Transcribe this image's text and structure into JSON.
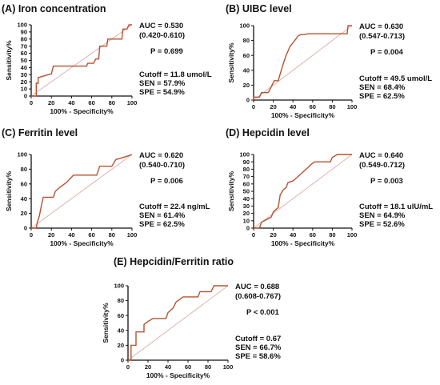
{
  "figure": {
    "background": "#ffffff",
    "curve_color": "#b8522e",
    "ref_line_color": "#e0b0b0"
  },
  "chart_data": [
    {
      "type": "line",
      "title": "(A) Iron concentration",
      "xlabel": "100% - Specificity%",
      "ylabel": "Sensitivity%",
      "xlim": [
        0,
        100
      ],
      "ylim": [
        0,
        100
      ],
      "xticks": [
        "0",
        "20",
        "40",
        "60",
        "80",
        "100"
      ],
      "yticks": [
        "0",
        "10",
        "20",
        "30",
        "40",
        "50",
        "60",
        "70",
        "80",
        "90",
        "100"
      ],
      "auc": "AUC = 0.530",
      "ci": "(0.420-0.610)",
      "p": "P = 0.699",
      "cutoff": "Cutoff = 11.8 umol/L",
      "sen": "SEN = 57.9%",
      "spe": "SPE = 54.9%",
      "x": [
        0,
        5,
        5,
        7,
        7,
        17,
        20,
        22,
        55,
        56,
        62,
        64,
        67,
        68,
        75,
        76,
        90,
        91,
        95,
        97,
        100
      ],
      "y": [
        0,
        0,
        18,
        18,
        26,
        30,
        31,
        42,
        42,
        46,
        46,
        52,
        52,
        70,
        70,
        80,
        80,
        94,
        94,
        100,
        100
      ]
    },
    {
      "type": "line",
      "title": "(B) UIBC level",
      "xlabel": "100% - Specificity%",
      "ylabel": "Sensitivity%",
      "xlim": [
        0,
        100
      ],
      "ylim": [
        0,
        100
      ],
      "xticks": [
        "0",
        "20",
        "40",
        "60",
        "80",
        "100"
      ],
      "yticks": [
        "0",
        "20",
        "40",
        "60",
        "80",
        "100"
      ],
      "auc": "AUC = 0.630",
      "ci": "(0.547-0.713)",
      "p": "P = 0.004",
      "cutoff": "Cutoff = 49.5 umol/L",
      "sen": "SEN = 68.4%",
      "spe": "SPE = 62.5%",
      "x": [
        0,
        0,
        6,
        8,
        15,
        18,
        21,
        25,
        27,
        29,
        31,
        33,
        35,
        37,
        40,
        43,
        45,
        48,
        52,
        55,
        95,
        96,
        100
      ],
      "y": [
        0,
        4,
        4,
        10,
        10,
        18,
        26,
        26,
        35,
        44,
        52,
        60,
        66,
        72,
        77,
        82,
        86,
        88,
        88,
        89,
        89,
        100,
        100
      ]
    },
    {
      "type": "line",
      "title": "(C) Ferritin level",
      "xlabel": "100% - Specificity%",
      "ylabel": "Sensitivity%",
      "xlim": [
        0,
        100
      ],
      "ylim": [
        0,
        100
      ],
      "xticks": [
        "0",
        "20",
        "40",
        "60",
        "80",
        "100"
      ],
      "yticks": [
        "0",
        "20",
        "40",
        "60",
        "80",
        "100"
      ],
      "auc": "AUC = 0.620",
      "ci": "(0.540-0.710)",
      "p": "P = 0.006",
      "cutoff": "Cutoff = 22.4 ng/mL",
      "sen": "SEN = 61.4%",
      "spe": "SPE = 62.5%",
      "x": [
        0,
        5,
        6,
        8,
        10,
        12,
        22,
        24,
        28,
        35,
        42,
        65,
        68,
        80,
        84,
        96,
        100
      ],
      "y": [
        0,
        0,
        8,
        16,
        30,
        42,
        42,
        50,
        55,
        62,
        72,
        72,
        84,
        84,
        93,
        98,
        100
      ]
    },
    {
      "type": "line",
      "title": "(D) Hepcidin level",
      "xlabel": "100% - Specificity%",
      "ylabel": "Sensitivity%",
      "xlim": [
        0,
        100
      ],
      "ylim": [
        0,
        100
      ],
      "xticks": [
        "0",
        "20",
        "40",
        "60",
        "80",
        "100"
      ],
      "yticks": [
        "0",
        "10",
        "20",
        "30",
        "40",
        "50",
        "60",
        "70",
        "80",
        "90",
        "100"
      ],
      "auc": "AUC = 0.640",
      "ci": "(0.549-0.712)",
      "p": "P = 0.003",
      "cutoff": "Cutoff = 18.1 ulU/mL",
      "sen": "SEN = 64.9%",
      "spe": "SPE = 52.6%",
      "x": [
        0,
        6,
        8,
        18,
        20,
        25,
        27,
        30,
        33,
        35,
        40,
        45,
        50,
        55,
        58,
        62,
        78,
        80,
        85,
        100
      ],
      "y": [
        0,
        0,
        8,
        15,
        22,
        28,
        45,
        52,
        55,
        62,
        64,
        70,
        76,
        82,
        86,
        90,
        90,
        96,
        100,
        100
      ]
    },
    {
      "type": "line",
      "title": "(E) Hepcidin/Ferritin ratio",
      "xlabel": "100% - Specificity%",
      "ylabel": "Sensitivity%",
      "xlim": [
        0,
        100
      ],
      "ylim": [
        0,
        100
      ],
      "xticks": [
        "0",
        "20",
        "40",
        "60",
        "80",
        "100"
      ],
      "yticks": [
        "0",
        "20",
        "40",
        "60",
        "80",
        "100"
      ],
      "auc": "AUC = 0.688",
      "ci": "(0.608-0.767)",
      "p": "P < 0.001",
      "cutoff": "Cutoff = 0.67",
      "sen": "SEN = 66.7%",
      "spe": "SPE = 58.6%",
      "x": [
        0,
        3,
        3,
        8,
        8,
        16,
        16,
        20,
        25,
        38,
        40,
        45,
        48,
        55,
        70,
        72,
        83,
        86,
        100
      ],
      "y": [
        0,
        0,
        20,
        20,
        38,
        38,
        48,
        52,
        56,
        56,
        64,
        70,
        78,
        85,
        85,
        92,
        92,
        100,
        100
      ]
    }
  ]
}
